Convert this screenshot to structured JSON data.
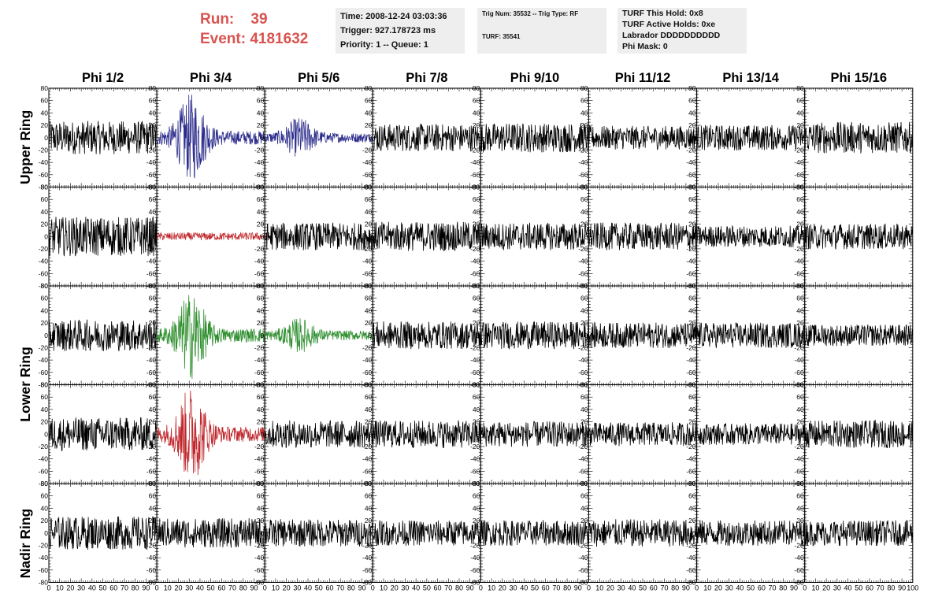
{
  "header": {
    "run_label": "Run:",
    "run_value": "39",
    "event_label": "Event:",
    "event_value": "4181632"
  },
  "time_box": {
    "time": "Time: 2008-12-24 03:03:36",
    "trigger": "Trigger: 927.178723 ms",
    "priority": "Priority: 1 -- Queue: 1"
  },
  "trig_box": {
    "trig": "Trig Num: 35532 -- Trig Type: RF",
    "turf": "TURF: 35541"
  },
  "turf_box": {
    "this_hold": "TURF This Hold: 0x8",
    "active_holds": "TURF Active Holds: 0xe",
    "labrador": "Labrador DDDDDDDDDD",
    "phi_mask": "Phi Mask: 0"
  },
  "colors": {
    "default_trace": "#000000",
    "blue_trace": "#2b2b8c",
    "red_trace": "#c0282d",
    "green_trace": "#2f8f2f",
    "header_red": "#d9534f"
  },
  "chart_data": {
    "type": "line",
    "columns": [
      "Phi 1/2",
      "Phi 3/4",
      "Phi 5/6",
      "Phi 7/8",
      "Phi 9/10",
      "Phi 11/12",
      "Phi 13/14",
      "Phi 15/16"
    ],
    "ring_labels": [
      "Upper Ring",
      "Lower Ring",
      "Nadir Ring"
    ],
    "rows": 5,
    "xlim": [
      0,
      100
    ],
    "ylim": [
      -80,
      80
    ],
    "x_ticks": [
      0,
      10,
      20,
      30,
      40,
      50,
      60,
      70,
      80,
      90,
      100
    ],
    "x_tick_labels": [
      "0",
      "10",
      "20",
      "30",
      "40",
      "50",
      "60",
      "70",
      "80",
      "90",
      "100"
    ],
    "y_ticks": [
      -80,
      -60,
      -40,
      -20,
      0,
      20,
      40,
      60,
      80
    ],
    "y_tick_labels": [
      "-80",
      "-60",
      "-40",
      "-20",
      "0",
      "20",
      "40",
      "60",
      "80"
    ],
    "traces": [
      [
        {
          "amp": 17,
          "color": "default_trace",
          "pulse": 0
        },
        {
          "amp": 20,
          "color": "blue_trace",
          "pulse": 1
        },
        {
          "amp": 14,
          "color": "blue_trace",
          "pulse": 0.6
        },
        {
          "amp": 14,
          "color": "default_trace",
          "pulse": 0
        },
        {
          "amp": 15,
          "color": "default_trace",
          "pulse": 0
        },
        {
          "amp": 12,
          "color": "default_trace",
          "pulse": 0
        },
        {
          "amp": 13,
          "color": "default_trace",
          "pulse": 0
        },
        {
          "amp": 16,
          "color": "default_trace",
          "pulse": 0
        }
      ],
      [
        {
          "amp": 20,
          "color": "default_trace",
          "pulse": 0
        },
        {
          "amp": 4,
          "color": "red_trace",
          "pulse": 0
        },
        {
          "amp": 14,
          "color": "default_trace",
          "pulse": 0
        },
        {
          "amp": 15,
          "color": "default_trace",
          "pulse": 0
        },
        {
          "amp": 14,
          "color": "default_trace",
          "pulse": 0
        },
        {
          "amp": 14,
          "color": "default_trace",
          "pulse": 0
        },
        {
          "amp": 11,
          "color": "default_trace",
          "pulse": 0
        },
        {
          "amp": 13,
          "color": "default_trace",
          "pulse": 0
        }
      ],
      [
        {
          "amp": 16,
          "color": "default_trace",
          "pulse": 0
        },
        {
          "amp": 20,
          "color": "green_trace",
          "pulse": 1
        },
        {
          "amp": 14,
          "color": "green_trace",
          "pulse": 0.5
        },
        {
          "amp": 14,
          "color": "default_trace",
          "pulse": 0
        },
        {
          "amp": 14,
          "color": "default_trace",
          "pulse": 0
        },
        {
          "amp": 13,
          "color": "default_trace",
          "pulse": 0
        },
        {
          "amp": 13,
          "color": "default_trace",
          "pulse": 0
        },
        {
          "amp": 11,
          "color": "default_trace",
          "pulse": 0
        }
      ],
      [
        {
          "amp": 17,
          "color": "default_trace",
          "pulse": 0
        },
        {
          "amp": 22,
          "color": "red_trace",
          "pulse": 1
        },
        {
          "amp": 14,
          "color": "default_trace",
          "pulse": 0
        },
        {
          "amp": 14,
          "color": "default_trace",
          "pulse": 0
        },
        {
          "amp": 13,
          "color": "default_trace",
          "pulse": 0
        },
        {
          "amp": 12,
          "color": "default_trace",
          "pulse": 0
        },
        {
          "amp": 11,
          "color": "default_trace",
          "pulse": 0
        },
        {
          "amp": 14,
          "color": "default_trace",
          "pulse": 0
        }
      ],
      [
        {
          "amp": 17,
          "color": "default_trace",
          "pulse": 0
        },
        {
          "amp": 15,
          "color": "default_trace",
          "pulse": 0
        },
        {
          "amp": 14,
          "color": "default_trace",
          "pulse": 0
        },
        {
          "amp": 13,
          "color": "default_trace",
          "pulse": 0
        },
        {
          "amp": 13,
          "color": "default_trace",
          "pulse": 0
        },
        {
          "amp": 14,
          "color": "default_trace",
          "pulse": 0
        },
        {
          "amp": 13,
          "color": "default_trace",
          "pulse": 0
        },
        {
          "amp": 13,
          "color": "default_trace",
          "pulse": 0
        }
      ]
    ]
  }
}
